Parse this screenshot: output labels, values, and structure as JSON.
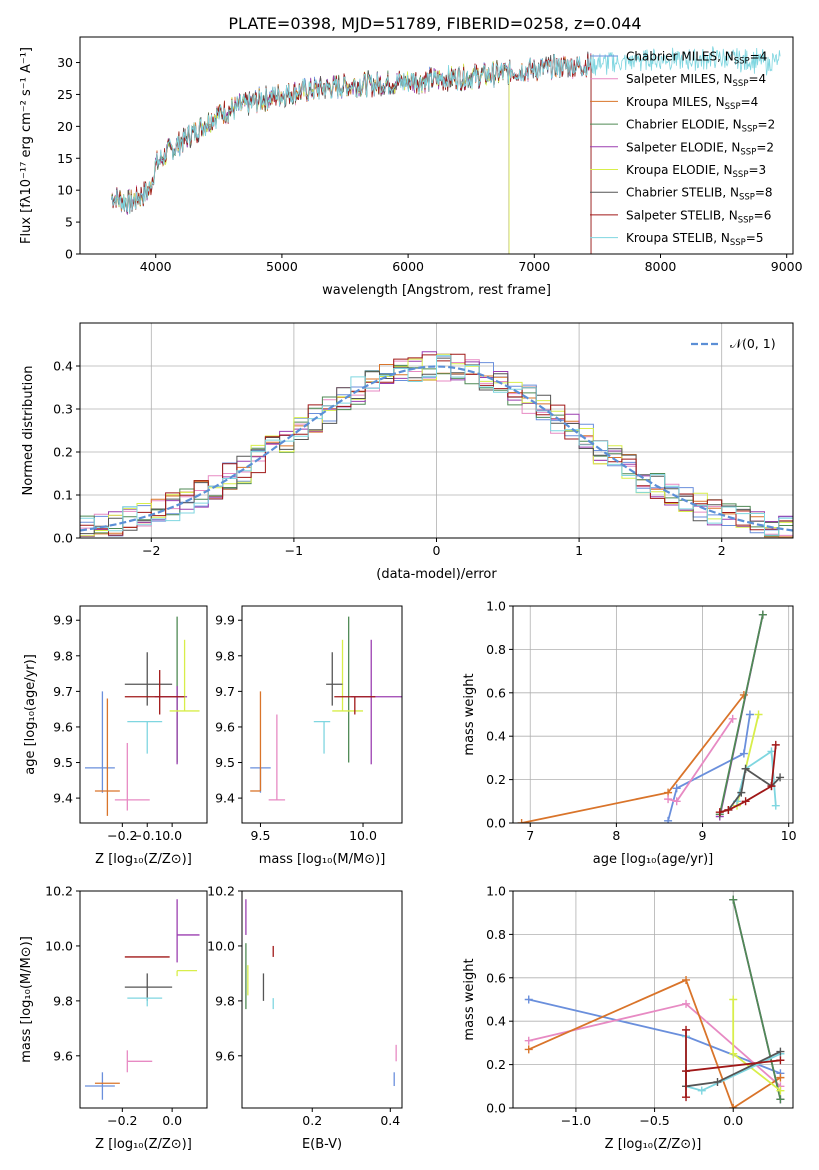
{
  "title": "PLATE=0398, MJD=51789, FIBERID=0258, z=0.044",
  "colors": {
    "chabrier_miles": "#6a8fdc",
    "salpeter_miles": "#e78ac3",
    "kroupa_miles": "#d9742a",
    "chabrier_elodie": "#4f8a55",
    "salpeter_elodie": "#9b3fb0",
    "kroupa_elodie": "#d8ee4a",
    "chabrier_stelib": "#555555",
    "salpeter_stelib": "#a01818",
    "kroupa_stelib": "#7fd6e0",
    "normal_curve": "#5b8fd6"
  },
  "chart_data": [
    {
      "id": "spectrum",
      "type": "line",
      "xlabel": "wavelength [Angstrom, rest frame]",
      "ylabel": "Flux [fλ10⁻¹⁷ erg cm⁻² s⁻¹ A⁻¹]",
      "xlim": [
        3400,
        9050
      ],
      "ylim": [
        0,
        34
      ],
      "xticks": [
        4000,
        5000,
        6000,
        7000,
        8000,
        9000
      ],
      "yticks": [
        0,
        5,
        10,
        15,
        20,
        25,
        30
      ],
      "legend_position": "top-right",
      "legend": [
        {
          "label": "Chabrier MILES, N",
          "sub": "SSP",
          "tail": "=4"
        },
        {
          "label": "Salpeter MILES, N",
          "sub": "SSP",
          "tail": "=4"
        },
        {
          "label": "Kroupa MILES, N",
          "sub": "SSP",
          "tail": "=4"
        },
        {
          "label": "Chabrier ELODIE, N",
          "sub": "SSP",
          "tail": "=2"
        },
        {
          "label": "Salpeter ELODIE, N",
          "sub": "SSP",
          "tail": "=2"
        },
        {
          "label": "Kroupa ELODIE, N",
          "sub": "SSP",
          "tail": "=3"
        },
        {
          "label": "Chabrier STELIB, N",
          "sub": "SSP",
          "tail": "=8"
        },
        {
          "label": "Salpeter STELIB, N",
          "sub": "SSP",
          "tail": "=6"
        },
        {
          "label": "Kroupa STELIB, N",
          "sub": "SSP",
          "tail": "=5"
        }
      ],
      "continuum": [
        [
          3650,
          9
        ],
        [
          3800,
          8
        ],
        [
          3950,
          10
        ],
        [
          4000,
          14
        ],
        [
          4100,
          16
        ],
        [
          4300,
          19
        ],
        [
          4500,
          22
        ],
        [
          4800,
          24
        ],
        [
          5000,
          25
        ],
        [
          5300,
          26
        ],
        [
          5600,
          26.5
        ],
        [
          6000,
          27
        ],
        [
          6300,
          27.5
        ],
        [
          6600,
          28
        ],
        [
          7000,
          29
        ],
        [
          7300,
          29.5
        ],
        [
          7600,
          30
        ],
        [
          8000,
          30.5
        ],
        [
          8500,
          30.5
        ],
        [
          8900,
          30
        ]
      ],
      "curves": [
        {
          "series": "chabrier_miles",
          "xmax": 7450
        },
        {
          "series": "salpeter_miles",
          "xmax": 7450
        },
        {
          "series": "kroupa_miles",
          "xmax": 7450
        },
        {
          "series": "chabrier_elodie",
          "xmax": 6800
        },
        {
          "series": "salpeter_elodie",
          "xmax": 6800
        },
        {
          "series": "kroupa_elodie",
          "xmax": 6800
        },
        {
          "series": "chabrier_stelib",
          "xmax": 7450
        },
        {
          "series": "salpeter_stelib",
          "xmax": 7450
        },
        {
          "series": "kroupa_stelib",
          "xmax": 9000
        }
      ],
      "dropouts": [
        6800,
        7450
      ]
    },
    {
      "id": "residuals",
      "type": "step",
      "xlabel": "(data-model)/error",
      "ylabel": "Normed distribution",
      "xlim": [
        -2.5,
        2.5
      ],
      "ylim": [
        0,
        0.5
      ],
      "xticks": [
        -2,
        -1,
        0,
        1,
        2
      ],
      "yticks": [
        0.0,
        0.1,
        0.2,
        0.3,
        0.4
      ],
      "legend_position": "top-right",
      "legend": {
        "label": "𝒩(0, 1)"
      },
      "series": [
        "chabrier_miles",
        "salpeter_miles",
        "kroupa_miles",
        "chabrier_elodie",
        "salpeter_elodie",
        "kroupa_elodie",
        "chabrier_stelib",
        "salpeter_stelib",
        "kroupa_stelib"
      ]
    },
    {
      "id": "age_vs_Z",
      "type": "errorbar",
      "xlabel": "Z [log₁₀(Z/Z⊙)]",
      "ylabel": "age  [log₁₀(age/yr)]",
      "xlim": [
        -0.37,
        0.14
      ],
      "ylim": [
        9.33,
        9.94
      ],
      "xticks": [
        -0.2,
        -0.1,
        0.0
      ],
      "yticks": [
        9.4,
        9.5,
        9.6,
        9.7,
        9.8,
        9.9
      ],
      "points": [
        {
          "series": "chabrier_miles",
          "x": -0.28,
          "xerr": [
            0.07,
            0.05
          ],
          "y": 9.485,
          "yerr": [
            0.07,
            0.215
          ]
        },
        {
          "series": "salpeter_miles",
          "x": -0.18,
          "xerr": [
            0.05,
            0.09
          ],
          "y": 9.395,
          "yerr": [
            0.03,
            0.16
          ]
        },
        {
          "series": "kroupa_miles",
          "x": -0.26,
          "xerr": [
            0.05,
            0.05
          ],
          "y": 9.42,
          "yerr": [
            0.07,
            0.26
          ]
        },
        {
          "series": "chabrier_elodie",
          "x": 0.02,
          "xerr": [
            0.0,
            0.0
          ],
          "y": 9.69,
          "yerr": [
            0.19,
            0.22
          ]
        },
        {
          "series": "salpeter_elodie",
          "x": 0.02,
          "xerr": [
            0.09,
            0.04
          ],
          "y": 9.685,
          "yerr": [
            0.19,
            0.03
          ]
        },
        {
          "series": "kroupa_elodie",
          "x": 0.05,
          "xerr": [
            0.06,
            0.06
          ],
          "y": 9.645,
          "yerr": [
            0.0,
            0.2
          ]
        },
        {
          "series": "chabrier_stelib",
          "x": -0.1,
          "xerr": [
            0.09,
            0.1
          ],
          "y": 9.72,
          "yerr": [
            0.06,
            0.09
          ]
        },
        {
          "series": "salpeter_stelib",
          "x": -0.05,
          "xerr": [
            0.14,
            0.1
          ],
          "y": 9.685,
          "yerr": [
            0.05,
            0.075
          ]
        },
        {
          "series": "kroupa_stelib",
          "x": -0.1,
          "xerr": [
            0.08,
            0.06
          ],
          "y": 9.615,
          "yerr": [
            0.09,
            0.0
          ]
        }
      ]
    },
    {
      "id": "age_vs_mass",
      "type": "errorbar",
      "xlabel": "mass [log₁₀(M/M⊙)]",
      "ylabel": "",
      "xlim": [
        9.41,
        10.19
      ],
      "ylim": [
        9.33,
        9.94
      ],
      "xticks": [
        9.5,
        10.0
      ],
      "yticks": [
        9.4,
        9.5,
        9.6,
        9.7,
        9.8,
        9.9
      ],
      "points": [
        {
          "series": "chabrier_miles",
          "x": 9.5,
          "xerr": [
            0.05,
            0.05
          ],
          "y": 9.485,
          "yerr": [
            0.07,
            0.0
          ]
        },
        {
          "series": "salpeter_miles",
          "x": 9.58,
          "xerr": [
            0.04,
            0.04
          ],
          "y": 9.395,
          "yerr": [
            0.0,
            0.24
          ]
        },
        {
          "series": "kroupa_miles",
          "x": 9.5,
          "xerr": [
            0.05,
            0.0
          ],
          "y": 9.42,
          "yerr": [
            0.0,
            0.28
          ]
        },
        {
          "series": "chabrier_elodie",
          "x": 9.93,
          "xerr": [
            0.0,
            0.0
          ],
          "y": 9.69,
          "yerr": [
            0.19,
            0.22
          ]
        },
        {
          "series": "salpeter_elodie",
          "x": 10.04,
          "xerr": [
            0.1,
            0.15
          ],
          "y": 9.685,
          "yerr": [
            0.19,
            0.16
          ]
        },
        {
          "series": "kroupa_elodie",
          "x": 9.9,
          "xerr": [
            0.05,
            0.1
          ],
          "y": 9.645,
          "yerr": [
            0.0,
            0.2
          ]
        },
        {
          "series": "chabrier_stelib",
          "x": 9.85,
          "xerr": [
            0.03,
            0.05
          ],
          "y": 9.72,
          "yerr": [
            0.06,
            0.09
          ]
        },
        {
          "series": "salpeter_stelib",
          "x": 9.96,
          "xerr": [
            0.1,
            0.1
          ],
          "y": 9.685,
          "yerr": [
            0.05,
            0.0
          ]
        },
        {
          "series": "kroupa_stelib",
          "x": 9.81,
          "xerr": [
            0.05,
            0.03
          ],
          "y": 9.615,
          "yerr": [
            0.09,
            0.0
          ]
        }
      ]
    },
    {
      "id": "mass_weight_vs_age",
      "type": "line",
      "xlabel": "age  [log₁₀(age/yr)]",
      "ylabel": "mass weight",
      "xlim": [
        6.8,
        10.05
      ],
      "ylim": [
        0,
        1
      ],
      "xticks": [
        7,
        8,
        9,
        10
      ],
      "yticks": [
        0.0,
        0.2,
        0.4,
        0.6,
        0.8,
        1.0
      ],
      "series": [
        {
          "series": "kroupa_miles",
          "x": [
            6.9,
            8.6,
            9.48
          ],
          "y": [
            0.0,
            0.14,
            0.59
          ]
        },
        {
          "series": "chabrier_miles",
          "x": [
            8.6,
            8.7,
            9.48,
            9.55
          ],
          "y": [
            0.01,
            0.16,
            0.32,
            0.5
          ]
        },
        {
          "series": "salpeter_miles",
          "x": [
            8.6,
            8.7,
            9.35
          ],
          "y": [
            0.11,
            0.1,
            0.48
          ]
        },
        {
          "series": "salpeter_elodie",
          "x": [
            9.2,
            9.7
          ],
          "y": [
            0.03,
            0.96
          ]
        },
        {
          "series": "chabrier_elodie",
          "x": [
            9.2,
            9.7
          ],
          "y": [
            0.04,
            0.96
          ]
        },
        {
          "series": "kroupa_elodie",
          "x": [
            9.4,
            9.5,
            9.65
          ],
          "y": [
            0.08,
            0.25,
            0.5
          ]
        },
        {
          "series": "kroupa_stelib",
          "x": [
            9.4,
            9.5,
            9.8,
            9.85
          ],
          "y": [
            0.1,
            0.25,
            0.33,
            0.08
          ]
        },
        {
          "series": "chabrier_stelib",
          "x": [
            9.3,
            9.45,
            9.5,
            9.8,
            9.9
          ],
          "y": [
            0.06,
            0.14,
            0.25,
            0.17,
            0.21
          ]
        },
        {
          "series": "salpeter_stelib",
          "x": [
            9.2,
            9.3,
            9.5,
            9.8,
            9.85
          ],
          "y": [
            0.05,
            0.06,
            0.1,
            0.17,
            0.36
          ]
        }
      ]
    },
    {
      "id": "mass_vs_Z",
      "type": "errorbar",
      "xlabel": "Z [log₁₀(Z/Z⊙)]",
      "ylabel": "mass [log₁₀(M/M⊙)]",
      "xlim": [
        -0.37,
        0.14
      ],
      "ylim": [
        9.41,
        10.2
      ],
      "xticks": [
        -0.2,
        0.0
      ],
      "yticks": [
        9.6,
        9.8,
        10.0,
        10.2
      ],
      "points": [
        {
          "series": "chabrier_miles",
          "x": -0.28,
          "xerr": [
            0.07,
            0.05
          ],
          "y": 9.49,
          "yerr": [
            0.05,
            0.05
          ]
        },
        {
          "series": "salpeter_miles",
          "x": -0.18,
          "xerr": [
            0.0,
            0.1
          ],
          "y": 9.58,
          "yerr": [
            0.04,
            0.04
          ]
        },
        {
          "series": "kroupa_miles",
          "x": -0.26,
          "xerr": [
            0.05,
            0.05
          ],
          "y": 9.5,
          "yerr": [
            0.0,
            0.0
          ]
        },
        {
          "series": "chabrier_elodie",
          "x": 0.02,
          "xerr": [
            0.0,
            0.0
          ],
          "y": 9.91,
          "yerr": [
            0.0,
            0.0
          ]
        },
        {
          "series": "salpeter_elodie",
          "x": 0.02,
          "xerr": [
            0.0,
            0.09
          ],
          "y": 10.04,
          "yerr": [
            0.1,
            0.13
          ]
        },
        {
          "series": "kroupa_elodie",
          "x": 0.02,
          "xerr": [
            0.0,
            0.08
          ],
          "y": 9.91,
          "yerr": [
            0.02,
            0.0
          ]
        },
        {
          "series": "chabrier_stelib",
          "x": -0.1,
          "xerr": [
            0.09,
            0.1
          ],
          "y": 9.85,
          "yerr": [
            0.05,
            0.05
          ]
        },
        {
          "series": "salpeter_stelib",
          "x": -0.09,
          "xerr": [
            0.1,
            0.08
          ],
          "y": 9.96,
          "yerr": [
            0.0,
            0.0
          ]
        },
        {
          "series": "kroupa_stelib",
          "x": -0.1,
          "xerr": [
            0.08,
            0.06
          ],
          "y": 9.81,
          "yerr": [
            0.03,
            0.0
          ]
        }
      ]
    },
    {
      "id": "mass_vs_EBV",
      "type": "errorbar",
      "xlabel": "E(B-V)",
      "ylabel": "",
      "xlim": [
        0.02,
        0.43
      ],
      "ylim": [
        9.41,
        10.2
      ],
      "xticks": [
        0.2,
        0.4
      ],
      "yticks": [
        9.6,
        9.8,
        10.0,
        10.2
      ],
      "points": [
        {
          "series": "chabrier_miles",
          "x": 0.41,
          "xerr": [
            0.0,
            0.0
          ],
          "y": 9.49,
          "yerr": [
            0.0,
            0.05
          ]
        },
        {
          "series": "salpeter_miles",
          "x": 0.415,
          "xerr": [
            0.0,
            0.0
          ],
          "y": 9.58,
          "yerr": [
            0.0,
            0.06
          ]
        },
        {
          "series": "kroupa_miles",
          "x": 0.41,
          "xerr": [
            0.0,
            0.0
          ],
          "y": 9.5,
          "yerr": [
            0.0,
            0.0
          ]
        },
        {
          "series": "chabrier_elodie",
          "x": 0.03,
          "xerr": [
            0.0,
            0.0
          ],
          "y": 9.91,
          "yerr": [
            0.14,
            0.1
          ]
        },
        {
          "series": "salpeter_elodie",
          "x": 0.03,
          "xerr": [
            0.0,
            0.0
          ],
          "y": 10.04,
          "yerr": [
            0.0,
            0.13
          ]
        },
        {
          "series": "kroupa_elodie",
          "x": 0.035,
          "xerr": [
            0.0,
            0.0
          ],
          "y": 9.91,
          "yerr": [
            0.09,
            0.02
          ]
        },
        {
          "series": "chabrier_stelib",
          "x": 0.075,
          "xerr": [
            0.0,
            0.0
          ],
          "y": 9.85,
          "yerr": [
            0.05,
            0.05
          ]
        },
        {
          "series": "salpeter_stelib",
          "x": 0.1,
          "xerr": [
            0.0,
            0.0
          ],
          "y": 9.96,
          "yerr": [
            0.0,
            0.04
          ]
        },
        {
          "series": "kroupa_stelib",
          "x": 0.1,
          "xerr": [
            0.0,
            0.0
          ],
          "y": 9.81,
          "yerr": [
            0.04,
            0.0
          ]
        }
      ]
    },
    {
      "id": "mass_weight_vs_Z",
      "type": "line",
      "xlabel": "Z [log₁₀(Z/Z⊙)]",
      "ylabel": "mass weight",
      "xlim": [
        -1.4,
        0.38
      ],
      "ylim": [
        0,
        1
      ],
      "xticks": [
        -1.0,
        -0.5,
        0.0
      ],
      "yticks": [
        0.0,
        0.2,
        0.4,
        0.6,
        0.8,
        1.0
      ],
      "series": [
        {
          "series": "chabrier_miles",
          "x": [
            -1.3,
            -0.3,
            0.3
          ],
          "y": [
            0.5,
            0.33,
            0.16
          ]
        },
        {
          "series": "salpeter_miles",
          "x": [
            -1.3,
            -0.3,
            0.3
          ],
          "y": [
            0.31,
            0.48,
            0.1
          ]
        },
        {
          "series": "kroupa_miles",
          "x": [
            -1.3,
            -0.3,
            0.0,
            0.3
          ],
          "y": [
            0.27,
            0.59,
            0.0,
            0.14
          ]
        },
        {
          "series": "salpeter_elodie",
          "x": [
            0.0,
            0.3
          ],
          "y": [
            0.96,
            0.04
          ]
        },
        {
          "series": "chabrier_elodie",
          "x": [
            0.0,
            0.3
          ],
          "y": [
            0.96,
            0.04
          ]
        },
        {
          "series": "kroupa_elodie",
          "x": [
            0.0,
            0.0,
            0.3
          ],
          "y": [
            0.5,
            0.25,
            0.08
          ]
        },
        {
          "series": "kroupa_stelib",
          "x": [
            -0.3,
            -0.3,
            -0.2,
            0.3
          ],
          "y": [
            0.33,
            0.1,
            0.08,
            0.25
          ]
        },
        {
          "series": "chabrier_stelib",
          "x": [
            -0.3,
            -0.3,
            -0.1,
            0.3
          ],
          "y": [
            0.17,
            0.1,
            0.12,
            0.26
          ]
        },
        {
          "series": "salpeter_stelib",
          "x": [
            -0.3,
            -0.3,
            -0.3,
            0.3
          ],
          "y": [
            0.36,
            0.05,
            0.17,
            0.22
          ]
        }
      ]
    }
  ]
}
